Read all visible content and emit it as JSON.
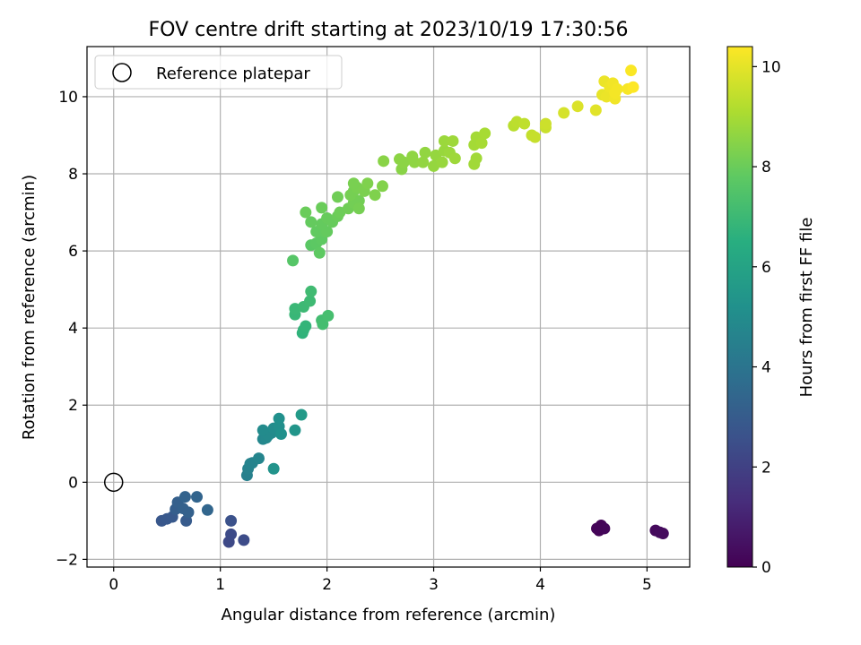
{
  "chart_data": {
    "type": "scatter",
    "title": "FOV centre drift starting at 2023/10/19 17:30:56",
    "xlabel": "Angular distance from reference (arcmin)",
    "ylabel": "Rotation from reference (arcmin)",
    "xlim": [
      -0.25,
      5.4
    ],
    "ylim": [
      -2.2,
      11.3
    ],
    "xticks": [
      0,
      1,
      2,
      3,
      4,
      5
    ],
    "yticks": [
      -2,
      0,
      2,
      4,
      6,
      8,
      10
    ],
    "grid": true,
    "legend": {
      "position": "top-left",
      "entries": [
        "Reference platepar"
      ]
    },
    "reference_point": {
      "x": 0,
      "y": 0
    },
    "colorbar": {
      "label": "Hours from first FF file",
      "range": [
        0,
        10.4
      ],
      "ticks": [
        0,
        2,
        4,
        6,
        8,
        10
      ],
      "colormap": "viridis"
    },
    "series": [
      {
        "points": [
          [
            4.55,
            -1.25,
            0.1
          ],
          [
            4.57,
            -1.12,
            0.1
          ],
          [
            4.6,
            -1.2,
            0.15
          ],
          [
            4.53,
            -1.2,
            0.12
          ],
          [
            5.08,
            -1.25,
            0.25
          ],
          [
            5.12,
            -1.3,
            0.3
          ],
          [
            5.15,
            -1.33,
            0.3
          ],
          [
            1.08,
            -1.55,
            2.3
          ],
          [
            1.1,
            -1.35,
            2.35
          ],
          [
            1.22,
            -1.5,
            2.4
          ],
          [
            1.1,
            -1.0,
            2.6
          ],
          [
            0.45,
            -1.0,
            2.8
          ],
          [
            0.5,
            -0.95,
            2.85
          ],
          [
            0.55,
            -0.9,
            2.9
          ],
          [
            0.68,
            -1.0,
            2.95
          ],
          [
            0.58,
            -0.7,
            3.1
          ],
          [
            0.6,
            -0.52,
            3.15
          ],
          [
            0.65,
            -0.68,
            3.2
          ],
          [
            0.7,
            -0.78,
            3.2
          ],
          [
            0.67,
            -0.38,
            3.3
          ],
          [
            0.78,
            -0.38,
            3.35
          ],
          [
            0.88,
            -0.72,
            3.4
          ],
          [
            1.25,
            0.18,
            4.5
          ],
          [
            1.26,
            0.35,
            4.55
          ],
          [
            1.28,
            0.48,
            4.6
          ],
          [
            1.3,
            0.5,
            4.6
          ],
          [
            1.36,
            0.62,
            4.7
          ],
          [
            1.4,
            1.12,
            4.8
          ],
          [
            1.43,
            1.15,
            4.85
          ],
          [
            1.45,
            1.22,
            4.9
          ],
          [
            1.48,
            1.28,
            4.9
          ],
          [
            1.4,
            1.35,
            4.95
          ],
          [
            1.5,
            1.4,
            5.0
          ],
          [
            1.55,
            1.45,
            5.1
          ],
          [
            1.55,
            1.65,
            5.15
          ],
          [
            1.57,
            1.25,
            5.2
          ],
          [
            1.5,
            0.35,
            5.3
          ],
          [
            1.7,
            1.35,
            5.4
          ],
          [
            1.76,
            1.75,
            5.6
          ],
          [
            1.77,
            3.87,
            6.7
          ],
          [
            1.78,
            3.95,
            6.75
          ],
          [
            1.8,
            4.05,
            6.8
          ],
          [
            1.7,
            4.35,
            6.9
          ],
          [
            1.7,
            4.5,
            6.95
          ],
          [
            1.78,
            4.55,
            7.0
          ],
          [
            1.84,
            4.7,
            7.05
          ],
          [
            1.85,
            4.95,
            7.1
          ],
          [
            1.95,
            4.2,
            7.15
          ],
          [
            1.96,
            4.1,
            7.2
          ],
          [
            2.01,
            4.32,
            7.25
          ],
          [
            1.68,
            5.75,
            7.6
          ],
          [
            1.85,
            6.15,
            7.7
          ],
          [
            1.9,
            6.2,
            7.75
          ],
          [
            1.93,
            5.95,
            7.8
          ],
          [
            1.95,
            6.3,
            7.8
          ],
          [
            1.9,
            6.5,
            7.85
          ],
          [
            1.98,
            6.5,
            7.85
          ],
          [
            2.0,
            6.5,
            7.9
          ],
          [
            1.85,
            6.75,
            7.9
          ],
          [
            1.95,
            6.7,
            7.9
          ],
          [
            2.0,
            6.85,
            7.95
          ],
          [
            2.05,
            6.75,
            7.95
          ],
          [
            2.1,
            6.9,
            8.0
          ],
          [
            1.8,
            7.0,
            8.0
          ],
          [
            1.95,
            7.12,
            8.0
          ],
          [
            2.12,
            7.0,
            8.05
          ],
          [
            2.2,
            7.1,
            8.1
          ],
          [
            2.1,
            7.4,
            8.1
          ],
          [
            2.25,
            7.25,
            8.15
          ],
          [
            2.3,
            7.3,
            8.15
          ],
          [
            2.22,
            7.45,
            8.2
          ],
          [
            2.25,
            7.55,
            8.2
          ],
          [
            2.3,
            7.1,
            8.2
          ],
          [
            2.28,
            7.65,
            8.25
          ],
          [
            2.25,
            7.75,
            8.25
          ],
          [
            2.35,
            7.55,
            8.3
          ],
          [
            2.45,
            7.45,
            8.35
          ],
          [
            2.38,
            7.75,
            8.35
          ],
          [
            2.52,
            7.68,
            8.4
          ],
          [
            2.53,
            8.33,
            8.5
          ],
          [
            2.7,
            8.12,
            8.5
          ],
          [
            2.68,
            8.38,
            8.55
          ],
          [
            2.72,
            8.3,
            8.55
          ],
          [
            2.8,
            8.45,
            8.6
          ],
          [
            2.82,
            8.3,
            8.6
          ],
          [
            2.9,
            8.3,
            8.65
          ],
          [
            2.92,
            8.55,
            8.65
          ],
          [
            3.0,
            8.2,
            8.7
          ],
          [
            3.02,
            8.48,
            8.7
          ],
          [
            3.08,
            8.3,
            8.75
          ],
          [
            3.1,
            8.6,
            8.75
          ],
          [
            3.1,
            8.85,
            8.8
          ],
          [
            3.15,
            8.55,
            8.8
          ],
          [
            3.18,
            8.85,
            8.85
          ],
          [
            3.2,
            8.4,
            8.85
          ],
          [
            3.38,
            8.25,
            8.9
          ],
          [
            3.4,
            8.4,
            8.9
          ],
          [
            3.38,
            8.75,
            8.95
          ],
          [
            3.4,
            8.95,
            8.95
          ],
          [
            3.45,
            8.8,
            9.0
          ],
          [
            3.48,
            9.05,
            9.0
          ],
          [
            3.75,
            9.25,
            9.3
          ],
          [
            3.78,
            9.35,
            9.35
          ],
          [
            3.85,
            9.3,
            9.4
          ],
          [
            3.92,
            9.0,
            9.45
          ],
          [
            3.95,
            8.95,
            9.5
          ],
          [
            4.05,
            9.2,
            9.55
          ],
          [
            4.05,
            9.3,
            9.6
          ],
          [
            4.22,
            9.58,
            9.75
          ],
          [
            4.35,
            9.75,
            9.85
          ],
          [
            4.52,
            9.65,
            9.95
          ],
          [
            4.58,
            10.05,
            10.05
          ],
          [
            4.6,
            10.4,
            10.1
          ],
          [
            4.62,
            10.0,
            10.1
          ],
          [
            4.65,
            10.25,
            10.15
          ],
          [
            4.68,
            10.35,
            10.2
          ],
          [
            4.7,
            9.95,
            10.2
          ],
          [
            4.7,
            10.1,
            10.25
          ],
          [
            4.72,
            10.2,
            10.25
          ],
          [
            4.82,
            10.2,
            10.3
          ],
          [
            4.85,
            10.68,
            10.35
          ],
          [
            4.87,
            10.25,
            10.4
          ]
        ]
      }
    ]
  }
}
